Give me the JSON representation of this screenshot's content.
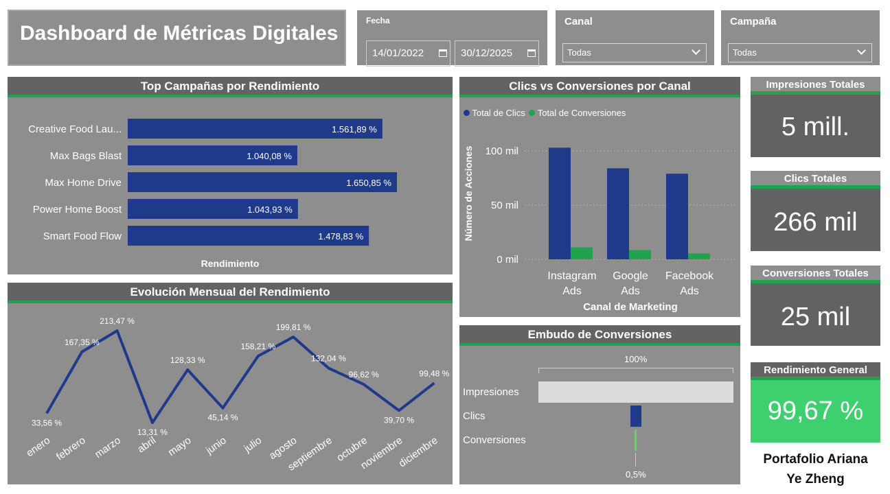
{
  "header": {
    "title": "Dashboard de Métricas Digitales"
  },
  "fecha": {
    "label": "Fecha",
    "start": "14/01/2022",
    "end": "30/12/2025"
  },
  "canal": {
    "label": "Canal",
    "value": "Todas"
  },
  "campana": {
    "label": "Campaña",
    "value": "Todas"
  },
  "top_campaigns": {
    "title": "Top Campañas por Rendimiento",
    "xlabel": "Rendimiento",
    "rows": [
      {
        "name": "Creative Food Lau...",
        "label": "1.561,89 %"
      },
      {
        "name": "Max Bags Blast",
        "label": "1.040,08 %"
      },
      {
        "name": "Max Home Drive",
        "label": "1.650,85 %"
      },
      {
        "name": "Power Home Boost",
        "label": "1.043,93 %"
      },
      {
        "name": "Smart Food Flow",
        "label": "1.478,83 %"
      }
    ]
  },
  "clics_conv": {
    "title": "Clics vs Conversiones por Canal",
    "legend": [
      "Total de Clics",
      "Total de Conversiones"
    ],
    "ylabel": "Número de Acciones",
    "xlabel": "Canal de Marketing",
    "ticks": [
      "100 mil",
      "50 mil",
      "0 mil"
    ]
  },
  "monthly": {
    "title": "Evolución Mensual del Rendimiento"
  },
  "funnel": {
    "title": "Embudo de Conversiones",
    "top_label": "100%",
    "bottom_label": "0,5%",
    "stages": [
      "Impresiones",
      "Clics",
      "Conversiones"
    ]
  },
  "kpis": {
    "impresiones": {
      "label": "Impresiones Totales",
      "value": "5 mill."
    },
    "clics": {
      "label": "Clics Totales",
      "value": "266 mil"
    },
    "conversiones": {
      "label": "Conversiones Totales",
      "value": "25 mil"
    },
    "rendimiento": {
      "label": "Rendimiento General",
      "value": "99,67 %"
    }
  },
  "footer": {
    "line1": "Portafolio Ariana",
    "line2": "Ye Zheng"
  },
  "colors": {
    "bar_blue": "#1f3a8a",
    "green": "#1fa34f",
    "panel": "#8e8e8e",
    "header": "#636363",
    "kpi_green": "#3ecf6f"
  },
  "chart_data": [
    {
      "type": "bar",
      "title": "Top Campañas por Rendimiento",
      "orientation": "horizontal",
      "categories": [
        "Creative Food Lau...",
        "Max Bags Blast",
        "Max Home Drive",
        "Power Home Boost",
        "Smart Food Flow"
      ],
      "values": [
        1561.89,
        1040.08,
        1650.85,
        1043.93,
        1478.83
      ],
      "xlabel": "Rendimiento",
      "ylabel": ""
    },
    {
      "type": "bar",
      "title": "Clics vs Conversiones por Canal",
      "categories": [
        "Instagram Ads",
        "Google Ads",
        "Facebook Ads"
      ],
      "series": [
        {
          "name": "Total de Clics",
          "values": [
            103000,
            84000,
            79000
          ]
        },
        {
          "name": "Total de Conversiones",
          "values": [
            11000,
            8500,
            5500
          ]
        }
      ],
      "xlabel": "Canal de Marketing",
      "ylabel": "Número de Acciones",
      "ylim": [
        0,
        110000
      ],
      "legend": "top-left",
      "grid": true
    },
    {
      "type": "line",
      "title": "Evolución Mensual del Rendimiento",
      "x": [
        "enero",
        "febrero",
        "marzo",
        "abril",
        "mayo",
        "junio",
        "julio",
        "agosto",
        "septiembre",
        "octubre",
        "noviembre",
        "diciembre"
      ],
      "values": [
        33.56,
        167.35,
        213.47,
        13.31,
        128.33,
        45.14,
        158.21,
        199.81,
        132.04,
        96.62,
        39.7,
        99.48
      ],
      "labels": [
        "33,56 %",
        "167,35 %",
        "213,47 %",
        "13,31 %",
        "128,33 %",
        "45,14 %",
        "158,21 %",
        "199,81 %",
        "132,04 %",
        "96,62 %",
        "39,70 %",
        "99,48 %"
      ]
    }
  ]
}
